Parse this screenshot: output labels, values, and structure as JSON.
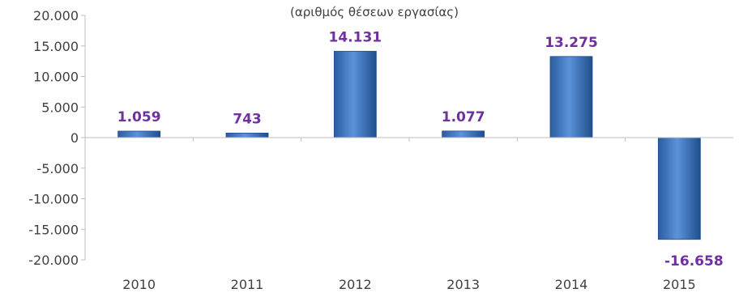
{
  "chart_data": {
    "type": "bar",
    "title": "",
    "subtitle": "(αριθμός θέσεων εργασίας)",
    "xlabel": "",
    "ylabel": "",
    "categories": [
      "2010",
      "2011",
      "2012",
      "2013",
      "2014",
      "2015"
    ],
    "values": [
      1059,
      743,
      14131,
      1077,
      13275,
      -16658
    ],
    "value_labels": [
      "1.059",
      "743",
      "14.131",
      "1.077",
      "13.275",
      "-16.658"
    ],
    "ylim": [
      -20000,
      20000
    ],
    "yticks": [
      20000,
      15000,
      10000,
      5000,
      0,
      -5000,
      -10000,
      -15000,
      -20000
    ],
    "ytick_labels": [
      "20.000",
      "15.000",
      "10.000",
      "5.000",
      "0",
      "-5.000",
      "-10.000",
      "-15.000",
      "-20.000"
    ],
    "grid": false,
    "legend": "none",
    "colors": {
      "bar": "#3f78c5",
      "bar_dark": "#1f4e8c",
      "label": "#7030a0",
      "axis": "#bfbfbf"
    }
  }
}
